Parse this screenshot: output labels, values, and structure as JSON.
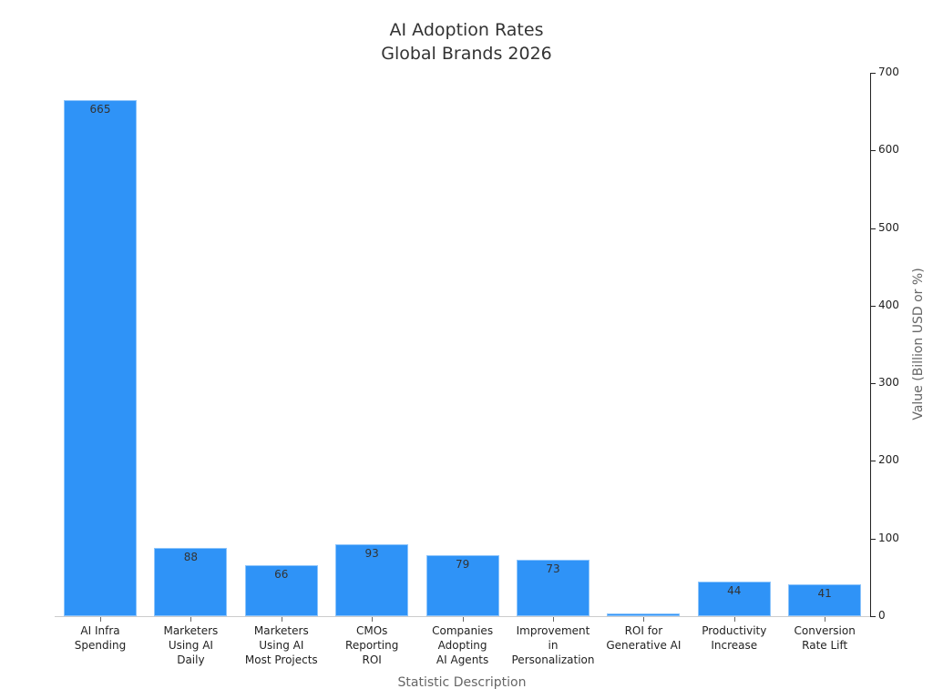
{
  "chart_data": {
    "type": "bar",
    "title": "AI Adoption Rates",
    "subtitle": "Global Brands 2026",
    "xlabel": "Statistic Description",
    "ylabel": "Value (Billion USD or %)",
    "ylim": [
      0,
      700
    ],
    "yticks": [
      0,
      100,
      200,
      300,
      400,
      500,
      600,
      700
    ],
    "y_axis_position": "right",
    "grid": false,
    "categories": [
      "AI Infra\nSpending",
      "Marketers\nUsing AI\nDaily",
      "Marketers\nUsing AI\nMost Projects",
      "CMOs\nReporting\nROI",
      "Companies\nAdopting\nAI Agents",
      "Improvement\nin\nPersonalization",
      "ROI for\nGenerative AI",
      "Productivity\nIncrease",
      "Conversion\nRate Lift"
    ],
    "values": [
      665,
      88,
      66,
      93,
      79,
      73,
      3.7,
      44,
      41
    ],
    "value_labels": [
      "665",
      "88",
      "66",
      "93",
      "79",
      "73",
      "",
      "44",
      "41"
    ],
    "bar_color": "#2f93f7"
  }
}
